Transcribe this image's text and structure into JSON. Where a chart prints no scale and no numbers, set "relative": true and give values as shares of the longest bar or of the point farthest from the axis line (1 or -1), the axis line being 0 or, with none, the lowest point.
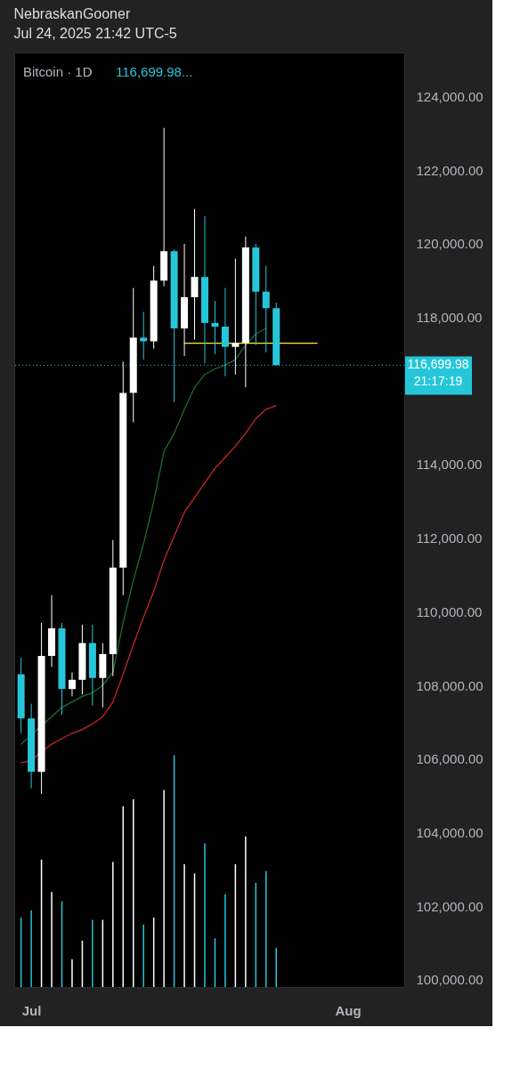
{
  "chart_data": [
    {
      "type": "candlestick",
      "title": "NebraskanGooner",
      "subtitle": "Jul 24, 2025 21:42 UTC-5",
      "x": [
        "2025-06-30",
        "2025-07-01",
        "2025-07-02",
        "2025-07-03",
        "2025-07-04",
        "2025-07-05",
        "2025-07-06",
        "2025-07-07",
        "2025-07-08",
        "2025-07-09",
        "2025-07-10",
        "2025-07-11",
        "2025-07-12",
        "2025-07-13",
        "2025-07-14",
        "2025-07-15",
        "2025-07-16",
        "2025-07-17",
        "2025-07-18",
        "2025-07-19",
        "2025-07-20",
        "2025-07-21",
        "2025-07-22",
        "2025-07-23",
        "2025-07-24",
        "2025-07-25"
      ],
      "ohlc": [
        [
          108300,
          108750,
          106700,
          107100
        ],
        [
          107100,
          107500,
          105200,
          105650
        ],
        [
          105650,
          109700,
          105050,
          108800
        ],
        [
          108800,
          110450,
          108500,
          109550
        ],
        [
          109550,
          109700,
          107200,
          107900
        ],
        [
          107900,
          108350,
          107700,
          108150
        ],
        [
          108150,
          109650,
          107750,
          109150
        ],
        [
          109150,
          109650,
          107450,
          108200
        ],
        [
          108200,
          109150,
          107400,
          108850
        ],
        [
          108850,
          111950,
          108250,
          111200
        ],
        [
          111200,
          116800,
          110450,
          115950
        ],
        [
          115950,
          118800,
          115150,
          117450
        ],
        [
          117450,
          118150,
          116850,
          117350
        ],
        [
          117350,
          119400,
          117150,
          119000
        ],
        [
          119000,
          123150,
          118850,
          119800
        ],
        [
          119800,
          119850,
          115700,
          117700
        ],
        [
          117700,
          120000,
          116950,
          118550
        ],
        [
          118550,
          120950,
          117400,
          119100
        ],
        [
          119100,
          120750,
          116750,
          117850
        ],
        [
          117850,
          118450,
          117000,
          117750
        ],
        [
          117750,
          118800,
          116400,
          117200
        ],
        [
          117200,
          119600,
          116450,
          117300
        ],
        [
          117300,
          120200,
          116100,
          119900
        ],
        [
          119900,
          120000,
          117250,
          118700
        ],
        [
          118700,
          119400,
          117050,
          118250
        ],
        [
          118250,
          118400,
          116699.98,
          116699.98
        ]
      ],
      "colors": [
        "#26c6da",
        "#26c6da",
        "#ffffff",
        "#ffffff",
        "#26c6da",
        "#ffffff",
        "#ffffff",
        "#26c6da",
        "#ffffff",
        "#ffffff",
        "#ffffff",
        "#ffffff",
        "#26c6da",
        "#ffffff",
        "#ffffff",
        "#26c6da",
        "#ffffff",
        "#ffffff",
        "#26c6da",
        "#26c6da",
        "#26c6da",
        "#ffffff",
        "#ffffff",
        "#26c6da",
        "#26c6da",
        "#26c6da"
      ],
      "series": [
        {
          "type": "line",
          "color": "#1f6b2e",
          "values": [
            106400,
            null,
            null,
            107150,
            107400,
            107550,
            107700,
            107800,
            108000,
            108350,
            109700,
            110850,
            111850,
            113000,
            114350,
            114850,
            115500,
            116100,
            116450,
            116600,
            116700,
            116850,
            117250,
            117550,
            117700,
            null
          ]
        },
        {
          "type": "line",
          "color": "#c62828",
          "values": [
            105900,
            105950,
            106200,
            106400,
            106550,
            106700,
            106800,
            106950,
            107150,
            107550,
            108300,
            109100,
            109850,
            110550,
            111400,
            112050,
            112700,
            113100,
            113500,
            113900,
            114200,
            114500,
            114850,
            115250,
            115500,
            115600
          ]
        },
        {
          "type": "line",
          "color": "#ffeb3b",
          "x": [
            "2025-07-16",
            "2025-07-29"
          ],
          "values": [
            117300,
            117300
          ]
        }
      ],
      "xlim": [
        "2025-06-29T08:00",
        "2025-08-06T13:00"
      ],
      "xticks": [
        {
          "value": "2025-07-01",
          "label": "Jul"
        },
        {
          "value": "2025-08-01",
          "label": "Aug"
        }
      ],
      "ylim": [
        99800,
        125200
      ],
      "yticks": [
        {
          "value": 100000,
          "label": "100,000.00"
        },
        {
          "value": 102000,
          "label": "102,000.00"
        },
        {
          "value": 104000,
          "label": "104,000.00"
        },
        {
          "value": 106000,
          "label": "106,000.00"
        },
        {
          "value": 108000,
          "label": "108,000.00"
        },
        {
          "value": 110000,
          "label": "110,000.00"
        },
        {
          "value": 112000,
          "label": "112,000.00"
        },
        {
          "value": 114000,
          "label": "114,000.00"
        },
        {
          "value": 118000,
          "label": "118,000.00"
        },
        {
          "value": 120000,
          "label": "120,000.00"
        },
        {
          "value": 122000,
          "label": "122,000.00"
        },
        {
          "value": 124000,
          "label": "124,000.00"
        }
      ],
      "ref_lines": [
        {
          "axis": "y",
          "value": 116699.98,
          "label": "116,699.98",
          "color": "#26c6da",
          "line_style": "dotted"
        }
      ],
      "annotations": [
        "Bitcoin · 1D",
        "116,699.98...",
        "21:17:19"
      ]
    },
    {
      "type": "bar",
      "relative": true,
      "tick_labels": false,
      "x": [
        "2025-06-30",
        "2025-07-01",
        "2025-07-02",
        "2025-07-03",
        "2025-07-04",
        "2025-07-05",
        "2025-07-06",
        "2025-07-07",
        "2025-07-08",
        "2025-07-09",
        "2025-07-10",
        "2025-07-11",
        "2025-07-12",
        "2025-07-13",
        "2025-07-14",
        "2025-07-15",
        "2025-07-16",
        "2025-07-17",
        "2025-07-18",
        "2025-07-19",
        "2025-07-20",
        "2025-07-21",
        "2025-07-22",
        "2025-07-23",
        "2025-07-24",
        "2025-07-25"
      ],
      "values": [
        0.3,
        0.33,
        0.55,
        0.41,
        0.37,
        0.12,
        0.2,
        0.29,
        0.29,
        0.54,
        0.78,
        0.81,
        0.27,
        0.3,
        0.85,
        1,
        0.53,
        0.49,
        0.62,
        0.21,
        0.4,
        0.53,
        0.65,
        0.45,
        0.5,
        0.17
      ],
      "colors": [
        "#26c6da",
        "#26c6da",
        "#ffffff",
        "#ffffff",
        "#26c6da",
        "#ffffff",
        "#ffffff",
        "#26c6da",
        "#ffffff",
        "#ffffff",
        "#ffffff",
        "#ffffff",
        "#26c6da",
        "#ffffff",
        "#ffffff",
        "#26c6da",
        "#ffffff",
        "#ffffff",
        "#26c6da",
        "#26c6da",
        "#26c6da",
        "#ffffff",
        "#ffffff",
        "#26c6da",
        "#26c6da",
        "#26c6da"
      ],
      "xlim": [
        "2025-06-29T08:00",
        "2025-08-06T13:00"
      ]
    }
  ]
}
